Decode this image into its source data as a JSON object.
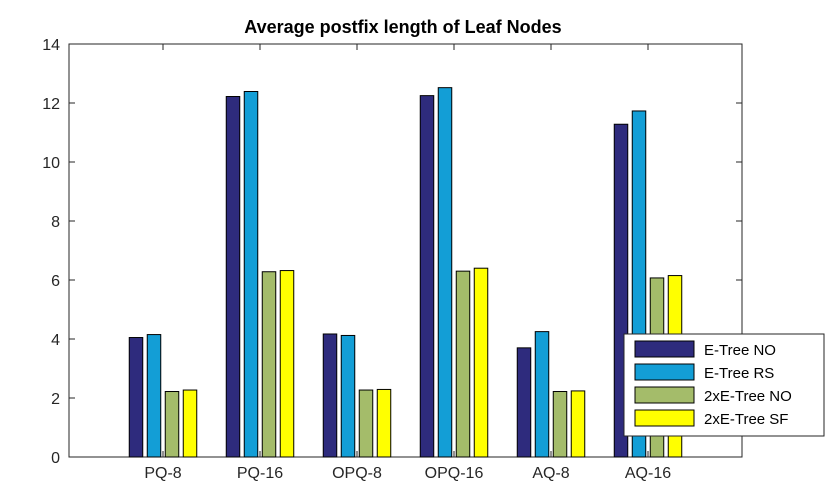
{
  "chart_data": {
    "type": "bar",
    "title": "Average postfix length of Leaf Nodes",
    "xlabel": "",
    "ylabel": "",
    "categories": [
      "PQ-8",
      "PQ-16",
      "OPQ-8",
      "OPQ-16",
      "AQ-8",
      "AQ-16"
    ],
    "series": [
      {
        "name": "E-Tree NO",
        "color": "#2e2b7d",
        "values": [
          4.05,
          12.22,
          4.17,
          12.25,
          3.7,
          11.28
        ]
      },
      {
        "name": "E-Tree RS",
        "color": "#139ed6",
        "values": [
          4.15,
          12.39,
          4.12,
          12.52,
          4.25,
          11.73
        ]
      },
      {
        "name": "2xE-Tree NO",
        "color": "#a4bc6a",
        "values": [
          2.22,
          6.28,
          2.27,
          6.3,
          2.22,
          6.07
        ]
      },
      {
        "name": "2xE-Tree SF",
        "color": "#ffff00",
        "values": [
          2.27,
          6.32,
          2.29,
          6.4,
          2.24,
          6.15
        ]
      }
    ],
    "ylim": [
      0,
      14
    ],
    "yticks": [
      0,
      2,
      4,
      6,
      8,
      10,
      12,
      14
    ],
    "grid": false,
    "legend_position": "bottom-right"
  }
}
